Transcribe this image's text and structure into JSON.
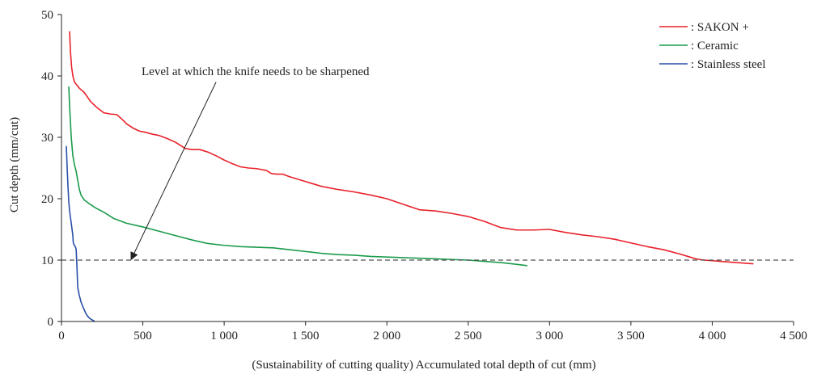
{
  "chart_data": {
    "type": "line",
    "title": "",
    "xlabel": "(Sustainability of cutting quality) Accumulated total depth of cut (mm)",
    "ylabel": "Cut depth (mm/cut)",
    "xlim": [
      0,
      4500
    ],
    "ylim": [
      0,
      50
    ],
    "x_ticks": [
      0,
      500,
      1000,
      1500,
      2000,
      2500,
      3000,
      3500,
      4000,
      4500
    ],
    "x_tick_labels": [
      "0",
      "500",
      "1 000",
      "1 500",
      "2 000",
      "2 500",
      "3 000",
      "3 500",
      "4 000",
      "4 500"
    ],
    "y_ticks": [
      0,
      10,
      20,
      30,
      40,
      50
    ],
    "y_tick_labels": [
      "0",
      "10",
      "20",
      "30",
      "40",
      "50"
    ],
    "grid": false,
    "legend_position": "top-right",
    "series": [
      {
        "name": ": SAKON +",
        "color": "#e8222a",
        "x": [
          50,
          55,
          62,
          70,
          80,
          95,
          110,
          140,
          180,
          220,
          260,
          300,
          340,
          370,
          400,
          440,
          480,
          520,
          560,
          600,
          650,
          700,
          760,
          800,
          850,
          900,
          950,
          1000,
          1050,
          1100,
          1150,
          1200,
          1260,
          1290,
          1320,
          1360,
          1400,
          1500,
          1600,
          1700,
          1800,
          1900,
          2000,
          2100,
          2200,
          2300,
          2400,
          2500,
          2600,
          2700,
          2800,
          2900,
          3000,
          3100,
          3200,
          3300,
          3400,
          3500,
          3600,
          3700,
          3800,
          3850,
          3900,
          3950,
          4000,
          4100,
          4200,
          4250
        ],
        "y": [
          47.2,
          44,
          41.5,
          40,
          39,
          38.5,
          38,
          37.3,
          35.8,
          34.8,
          34,
          33.8,
          33.7,
          33,
          32.2,
          31.5,
          31,
          30.8,
          30.5,
          30.3,
          29.8,
          29.2,
          28.2,
          28,
          28,
          27.6,
          27,
          26.3,
          25.7,
          25.2,
          25,
          24.9,
          24.6,
          24.1,
          24,
          24,
          23.6,
          22.8,
          22,
          21.5,
          21.1,
          20.6,
          20,
          19.1,
          18.2,
          18,
          17.6,
          17.1,
          16.3,
          15.3,
          14.9,
          14.9,
          15,
          14.5,
          14.1,
          13.8,
          13.4,
          12.8,
          12.2,
          11.7,
          11,
          10.6,
          10.2,
          10,
          9.9,
          9.7,
          9.5,
          9.4
        ],
        "labels": []
      },
      {
        "name": ": Ceramic",
        "color": "#1a9b4b",
        "x": [
          45,
          52,
          60,
          70,
          80,
          90,
          100,
          110,
          120,
          140,
          170,
          210,
          260,
          320,
          400,
          500,
          600,
          700,
          800,
          900,
          1000,
          1100,
          1200,
          1300,
          1400,
          1500,
          1600,
          1700,
          1800,
          1900,
          2000,
          2100,
          2200,
          2300,
          2400,
          2500,
          2600,
          2700,
          2800,
          2860
        ],
        "y": [
          38.2,
          34,
          30,
          27,
          25.5,
          24.5,
          23,
          21.5,
          20.6,
          19.8,
          19.2,
          18.5,
          17.8,
          16.8,
          16,
          15.4,
          14.7,
          14,
          13.3,
          12.7,
          12.4,
          12.2,
          12.1,
          12,
          11.7,
          11.4,
          11.1,
          10.9,
          10.8,
          10.6,
          10.5,
          10.4,
          10.3,
          10.2,
          10.1,
          10,
          9.8,
          9.6,
          9.3,
          9.1
        ],
        "labels": []
      },
      {
        "name": ": Stainless steel",
        "color": "#2b4fa8",
        "x": [
          30,
          35,
          40,
          45,
          50,
          55,
          60,
          65,
          70,
          72,
          75,
          80,
          85,
          90,
          95,
          100,
          110,
          120,
          130,
          140,
          150,
          160,
          170,
          185,
          200
        ],
        "y": [
          28.5,
          25,
          22,
          19.5,
          18,
          17,
          16,
          15,
          14,
          13,
          12.6,
          12.4,
          12.2,
          11.8,
          9,
          5.5,
          4.2,
          3.2,
          2.5,
          1.9,
          1.3,
          0.9,
          0.6,
          0.3,
          0.1
        ],
        "labels": []
      }
    ],
    "reference_line": {
      "y": 10,
      "color": "#555555",
      "style": "dashed"
    },
    "annotation": {
      "text": "Level at which the knife needs to be sharpened",
      "arrow_start_x": 950,
      "arrow_start_y": 39,
      "arrow_end_x": 430,
      "arrow_end_y": 10.2
    },
    "colors": {
      "axis": "#222222",
      "text": "#222222",
      "background": "#ffffff"
    }
  }
}
